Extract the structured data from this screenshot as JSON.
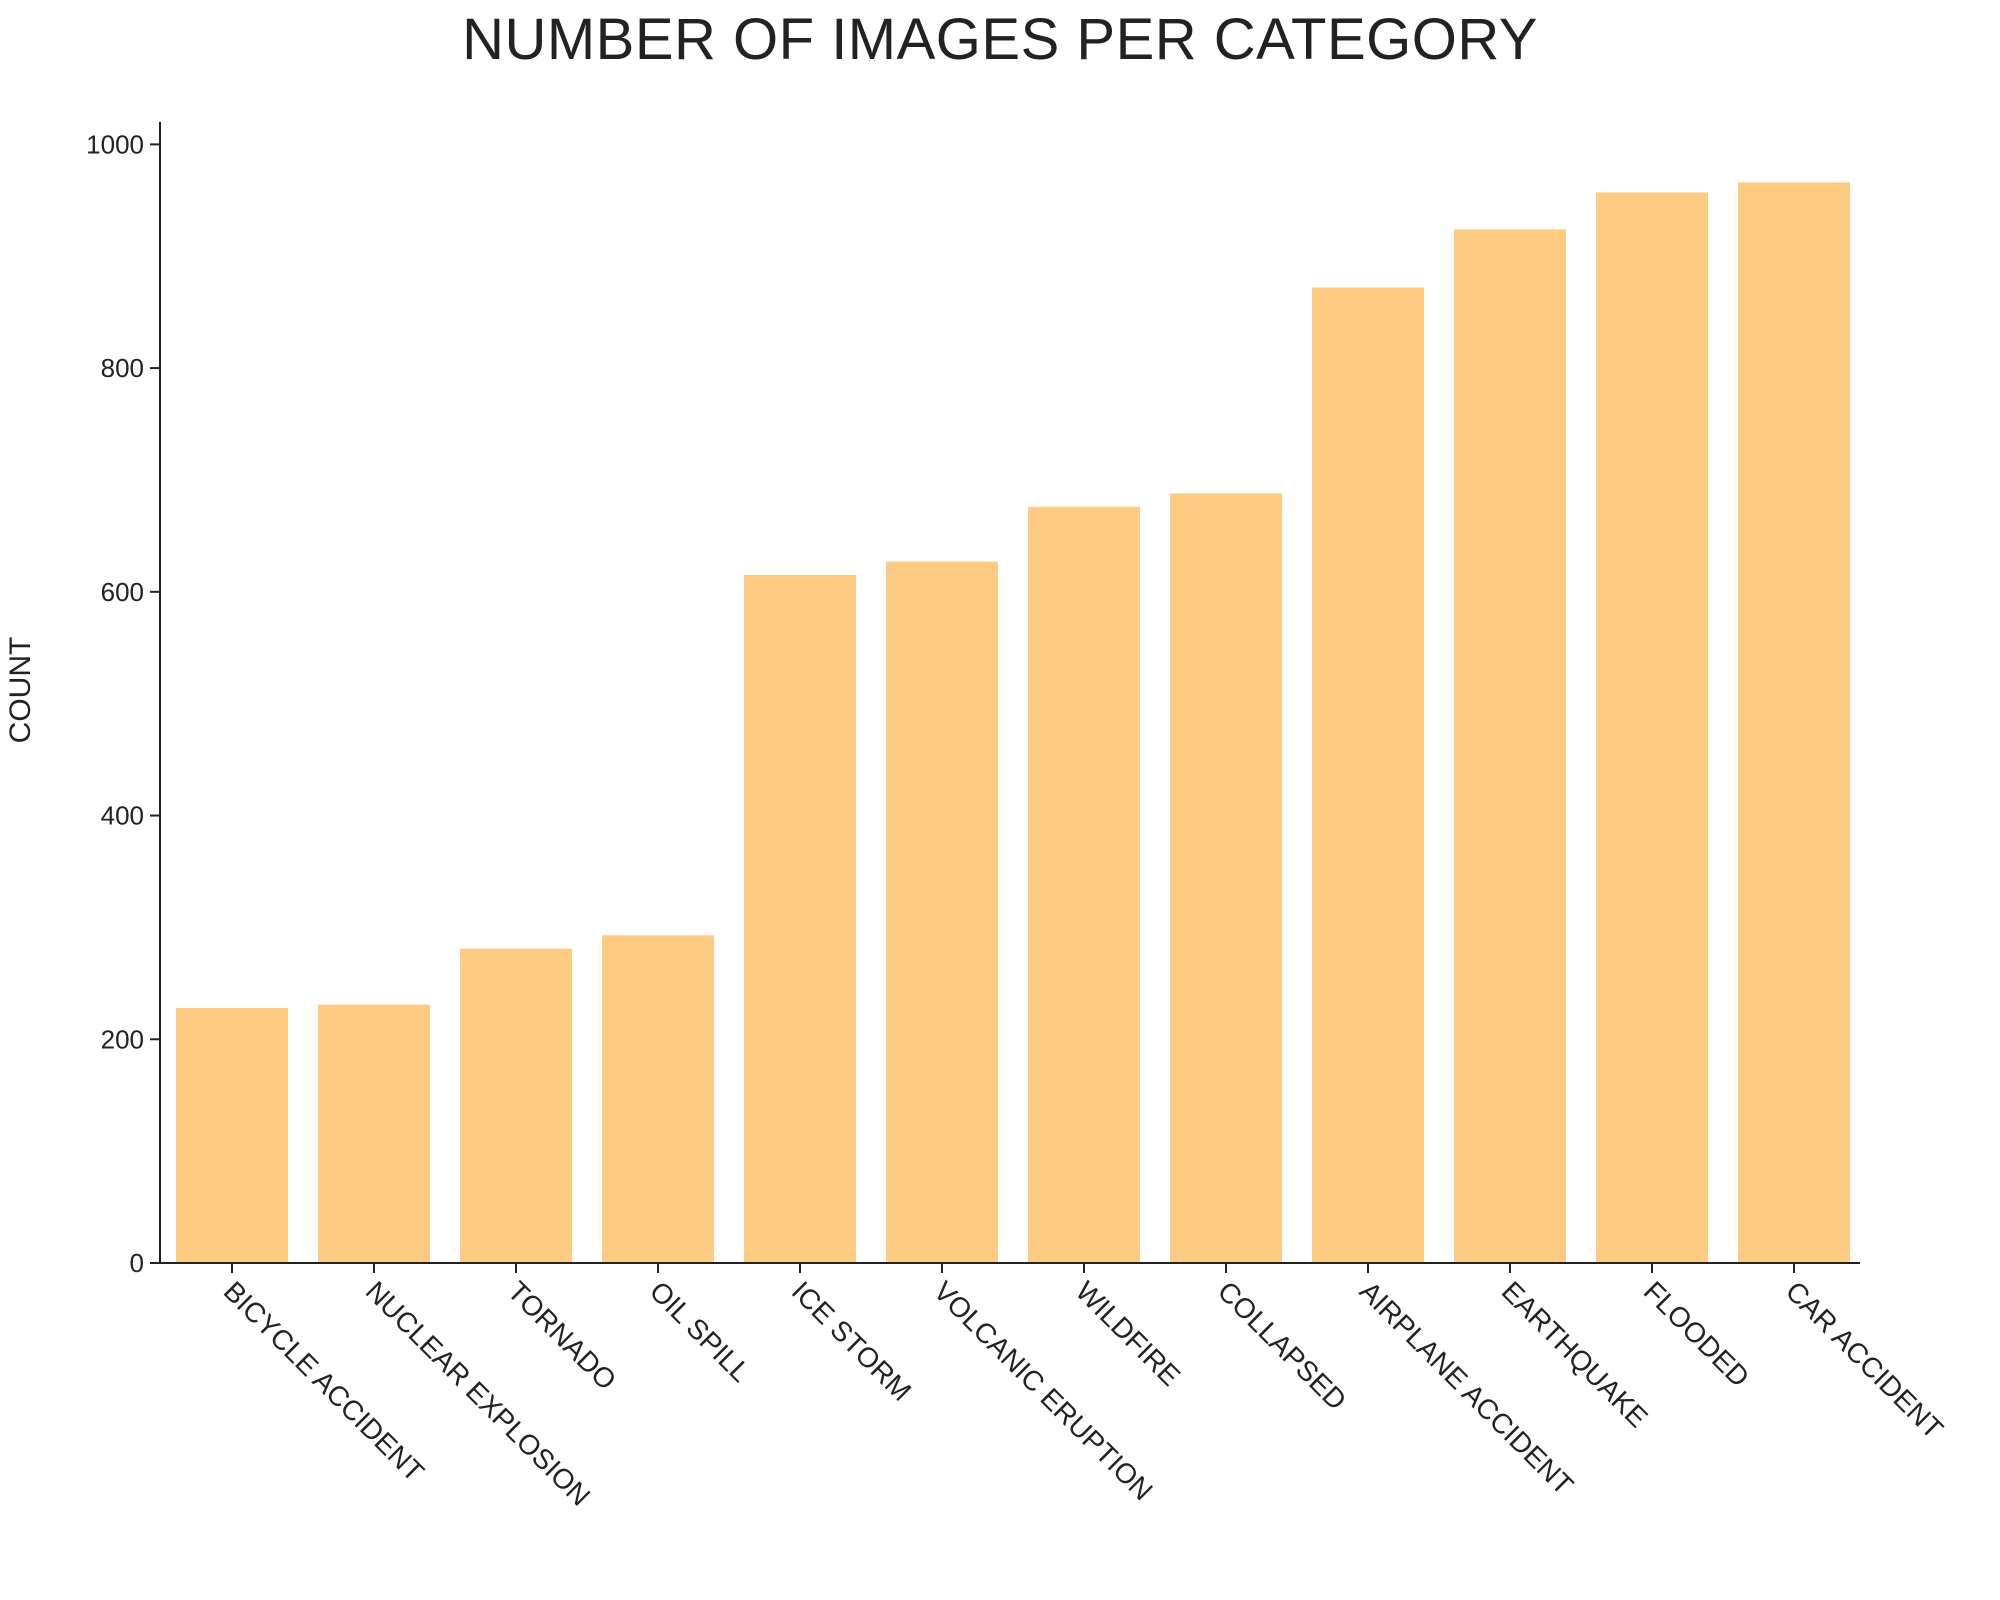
{
  "chart_data": {
    "type": "bar",
    "title": "NUMBER OF IMAGES PER CATEGORY",
    "xlabel": "",
    "ylabel": "COUNT",
    "categories": [
      "BICYCLE ACCIDENT",
      "NUCLEAR EXPLOSION",
      "TORNADO",
      "OIL SPILL",
      "ICE STORM",
      "VOLCANIC ERUPTION",
      "WILDFIRE",
      "COLLAPSED",
      "AIRPLANE ACCIDENT",
      "EARTHQUAKE",
      "FLOODED",
      "CAR ACCIDENT"
    ],
    "values": [
      228,
      231,
      281,
      293,
      615,
      627,
      676,
      688,
      872,
      924,
      957,
      966
    ],
    "ylim": [
      0,
      1020
    ],
    "yticks": [
      0,
      200,
      400,
      600,
      800,
      1000
    ],
    "grid": false,
    "bar_color": "#fdcb82",
    "axis_color": "#222222",
    "text_color": "#222222"
  }
}
